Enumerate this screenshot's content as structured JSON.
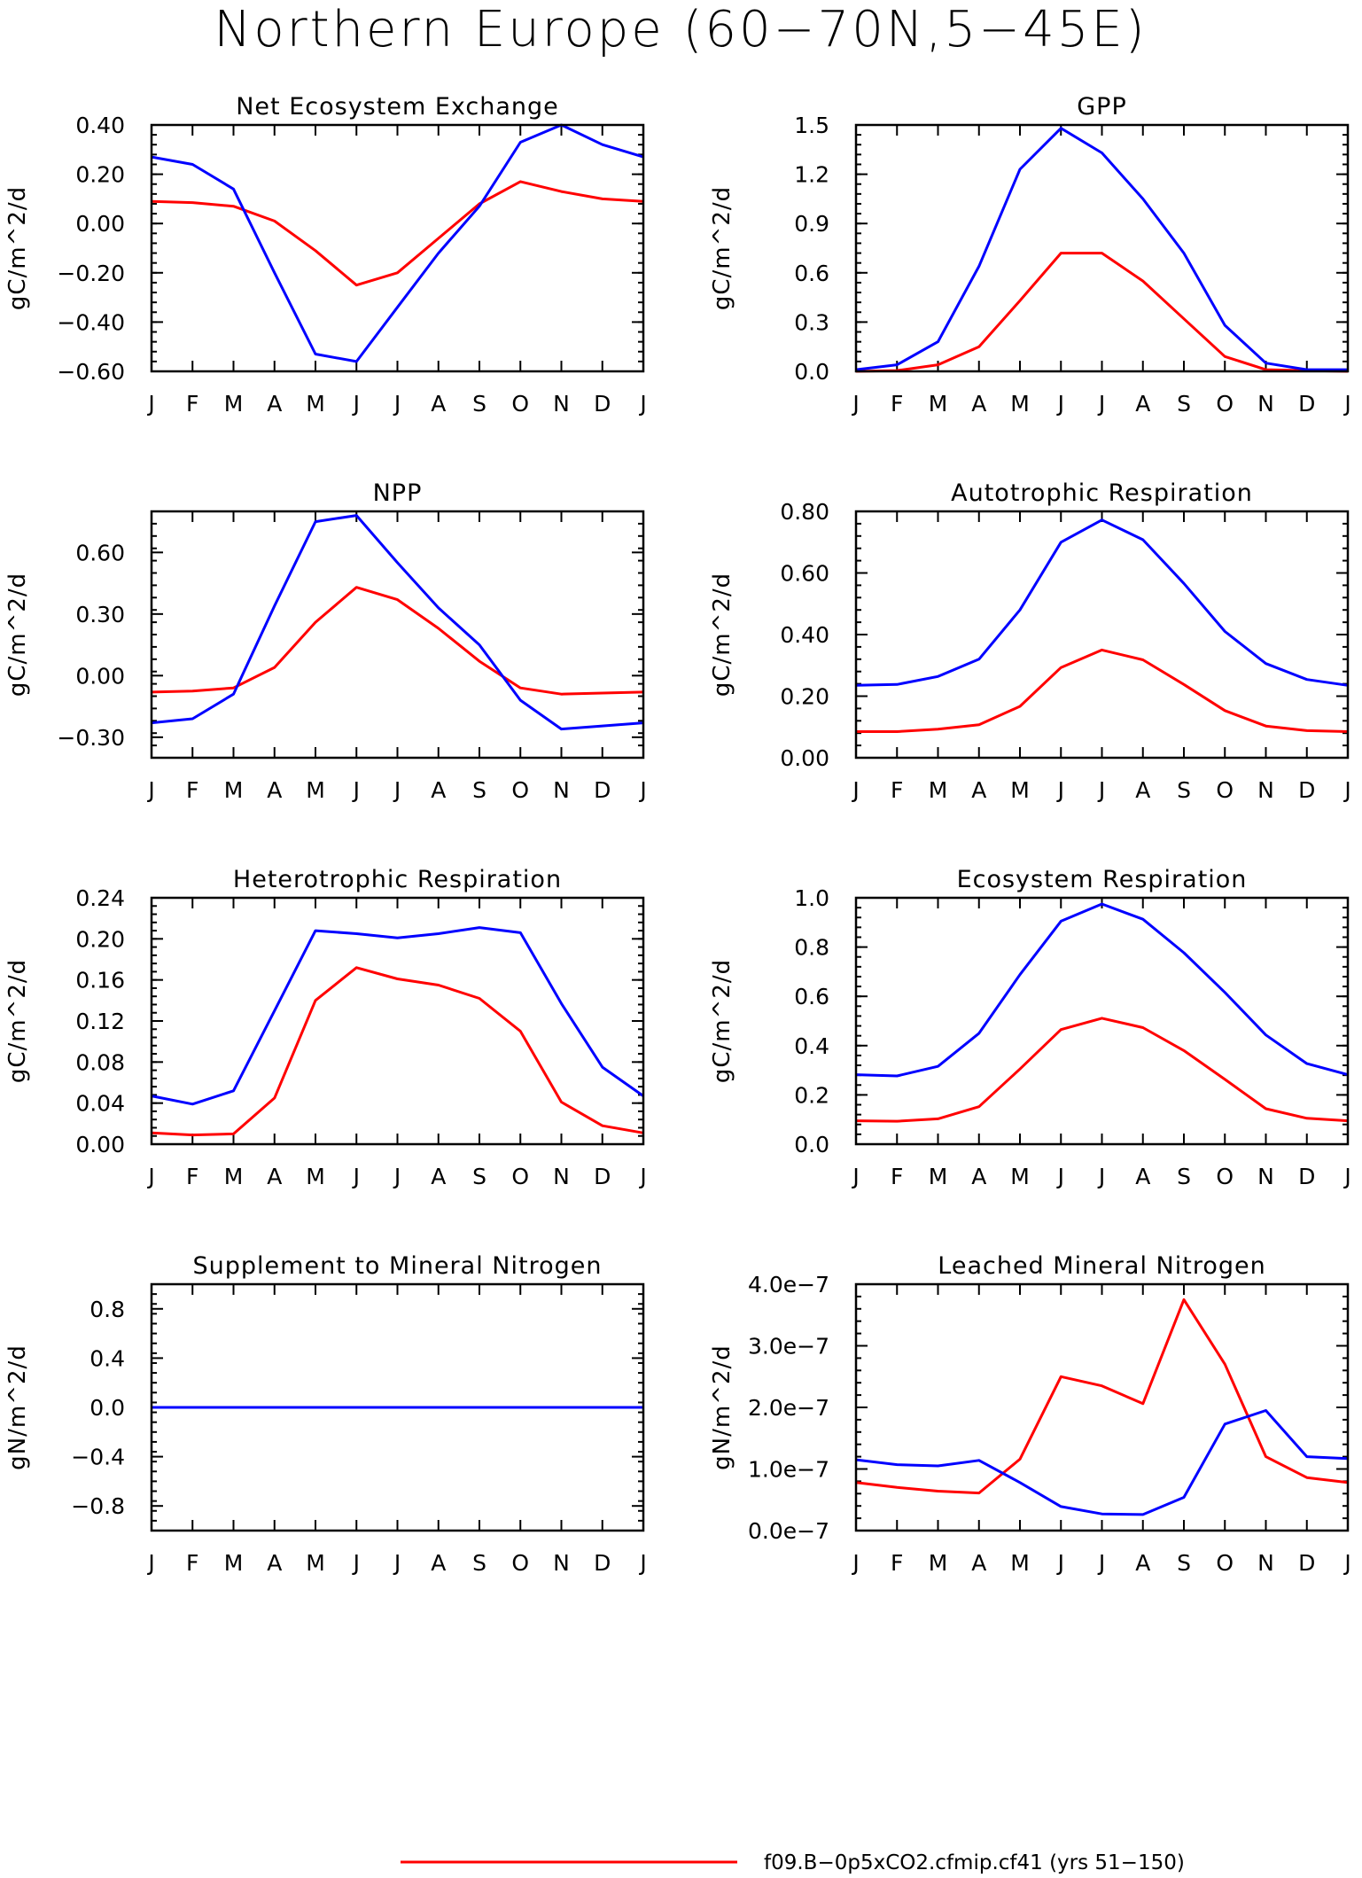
{
  "title": "Northern Europe (60−70N,5−45E)",
  "months": [
    "J",
    "F",
    "M",
    "A",
    "M",
    "J",
    "J",
    "A",
    "S",
    "O",
    "N",
    "D",
    "J"
  ],
  "colors": {
    "red": "#ff0000",
    "blue": "#0000ff"
  },
  "legend": [
    {
      "color": "#ff0000",
      "label": "f09.B−0p5xCO2.cfmip.cf41 (yrs 51−150)"
    }
  ],
  "chart_data": [
    {
      "type": "line",
      "title": "Net Ecosystem Exchange",
      "ylabel": "gC/m^2/d",
      "ylim": [
        -0.6,
        0.4
      ],
      "yticks": [
        -0.6,
        -0.4,
        -0.2,
        0.0,
        0.2,
        0.4
      ],
      "ytick_labels": [
        "−0.60",
        "−0.40",
        "−0.20",
        "0.00",
        "0.20",
        "0.40"
      ],
      "series": [
        {
          "color": "#ff0000",
          "values": [
            0.09,
            0.085,
            0.07,
            0.01,
            -0.11,
            -0.25,
            -0.2,
            -0.06,
            0.08,
            0.17,
            0.13,
            0.1,
            0.09
          ]
        },
        {
          "color": "#0000ff",
          "values": [
            0.27,
            0.24,
            0.14,
            -0.2,
            -0.53,
            -0.56,
            -0.34,
            -0.12,
            0.07,
            0.33,
            0.4,
            0.32,
            0.27
          ]
        }
      ]
    },
    {
      "type": "line",
      "title": "GPP",
      "ylabel": "gC/m^2/d",
      "ylim": [
        0,
        1.5
      ],
      "yticks": [
        0,
        0.3,
        0.6,
        0.9,
        1.2,
        1.5
      ],
      "ytick_labels": [
        "0.0",
        "0.3",
        "0.6",
        "0.9",
        "1.2",
        "1.5"
      ],
      "series": [
        {
          "color": "#ff0000",
          "values": [
            0.0,
            0.005,
            0.04,
            0.15,
            0.43,
            0.72,
            0.72,
            0.55,
            0.32,
            0.09,
            0.01,
            0.005,
            0.0
          ]
        },
        {
          "color": "#0000ff",
          "values": [
            0.01,
            0.04,
            0.18,
            0.64,
            1.23,
            1.48,
            1.33,
            1.05,
            0.72,
            0.28,
            0.05,
            0.01,
            0.01
          ]
        }
      ]
    },
    {
      "type": "line",
      "title": "NPP",
      "ylabel": "gC/m^2/d",
      "ylim": [
        -0.4,
        0.8
      ],
      "yticks": [
        -0.3,
        0.0,
        0.3,
        0.6
      ],
      "ytick_labels": [
        "−0.30",
        "0.00",
        "0.30",
        "0.60"
      ],
      "series": [
        {
          "color": "#ff0000",
          "values": [
            -0.08,
            -0.075,
            -0.06,
            0.04,
            0.26,
            0.43,
            0.37,
            0.23,
            0.07,
            -0.06,
            -0.09,
            -0.085,
            -0.08
          ]
        },
        {
          "color": "#0000ff",
          "values": [
            -0.23,
            -0.21,
            -0.09,
            0.34,
            0.75,
            0.78,
            0.55,
            0.33,
            0.15,
            -0.12,
            -0.26,
            -0.245,
            -0.23
          ]
        }
      ]
    },
    {
      "type": "line",
      "title": "Autotrophic Respiration",
      "ylabel": "gC/m^2/d",
      "ylim": [
        0,
        0.8
      ],
      "yticks": [
        0,
        0.2,
        0.4,
        0.6,
        0.8
      ],
      "ytick_labels": [
        "0.00",
        "0.20",
        "0.40",
        "0.60",
        "0.80"
      ],
      "series": [
        {
          "color": "#ff0000",
          "values": [
            0.085,
            0.085,
            0.093,
            0.107,
            0.167,
            0.293,
            0.35,
            0.318,
            0.238,
            0.153,
            0.103,
            0.088,
            0.085
          ]
        },
        {
          "color": "#0000ff",
          "values": [
            0.235,
            0.238,
            0.264,
            0.32,
            0.48,
            0.7,
            0.772,
            0.708,
            0.566,
            0.41,
            0.306,
            0.254,
            0.235
          ]
        }
      ]
    },
    {
      "type": "line",
      "title": "Heterotrophic Respiration",
      "ylabel": "gC/m^2/d",
      "ylim": [
        0,
        0.24
      ],
      "yticks": [
        0,
        0.04,
        0.08,
        0.12,
        0.16,
        0.2,
        0.24
      ],
      "ytick_labels": [
        "0.00",
        "0.04",
        "0.08",
        "0.12",
        "0.16",
        "0.20",
        "0.24"
      ],
      "series": [
        {
          "color": "#ff0000",
          "values": [
            0.011,
            0.009,
            0.01,
            0.045,
            0.14,
            0.172,
            0.161,
            0.155,
            0.142,
            0.11,
            0.041,
            0.018,
            0.011
          ]
        },
        {
          "color": "#0000ff",
          "values": [
            0.047,
            0.039,
            0.052,
            0.13,
            0.208,
            0.205,
            0.201,
            0.205,
            0.211,
            0.206,
            0.137,
            0.075,
            0.047
          ]
        }
      ]
    },
    {
      "type": "line",
      "title": "Ecosystem Respiration",
      "ylabel": "gC/m^2/d",
      "ylim": [
        0,
        1.0
      ],
      "yticks": [
        0,
        0.2,
        0.4,
        0.6,
        0.8,
        1.0
      ],
      "ytick_labels": [
        "0.0",
        "0.2",
        "0.4",
        "0.6",
        "0.8",
        "1.0"
      ],
      "series": [
        {
          "color": "#ff0000",
          "values": [
            0.095,
            0.093,
            0.103,
            0.152,
            0.305,
            0.465,
            0.511,
            0.473,
            0.38,
            0.263,
            0.144,
            0.105,
            0.095
          ]
        },
        {
          "color": "#0000ff",
          "values": [
            0.282,
            0.277,
            0.316,
            0.45,
            0.688,
            0.905,
            0.975,
            0.913,
            0.777,
            0.616,
            0.443,
            0.327,
            0.282
          ]
        }
      ]
    },
    {
      "type": "line",
      "title": "Supplement to Mineral Nitrogen",
      "ylabel": "gN/m^2/d",
      "ylim": [
        -1.0,
        1.0
      ],
      "yticks": [
        -0.8,
        -0.4,
        0.0,
        0.4,
        0.8
      ],
      "ytick_labels": [
        "−0.8",
        "−0.4",
        "0.0",
        "0.4",
        "0.8"
      ],
      "series": [
        {
          "color": "#ff0000",
          "values": [
            0,
            0,
            0,
            0,
            0,
            0,
            0,
            0,
            0,
            0,
            0,
            0,
            0
          ]
        },
        {
          "color": "#0000ff",
          "values": [
            0,
            0,
            0,
            0,
            0,
            0,
            0,
            0,
            0,
            0,
            0,
            0,
            0
          ]
        }
      ]
    },
    {
      "type": "line",
      "title": "Leached Mineral Nitrogen",
      "ylabel": "gN/m^2/d",
      "ylim": [
        0,
        4e-07
      ],
      "yticks": [
        0,
        1e-07,
        2e-07,
        3e-07,
        4e-07
      ],
      "ytick_labels": [
        "0.0e−7",
        "1.0e−7",
        "2.0e−7",
        "3.0e−7",
        "4.0e−7"
      ],
      "series": [
        {
          "color": "#ff0000",
          "values": [
            7.8e-08,
            7e-08,
            6.4e-08,
            6.1e-08,
            1.16e-07,
            2.5e-07,
            2.35e-07,
            2.06e-07,
            3.75e-07,
            2.7e-07,
            1.2e-07,
            8.6e-08,
            7.8e-08
          ]
        },
        {
          "color": "#0000ff",
          "values": [
            1.15e-07,
            1.07e-07,
            1.05e-07,
            1.14e-07,
            7.8e-08,
            3.9e-08,
            2.7e-08,
            2.6e-08,
            5.4e-08,
            1.73e-07,
            1.95e-07,
            1.2e-07,
            1.17e-07
          ]
        }
      ]
    }
  ]
}
